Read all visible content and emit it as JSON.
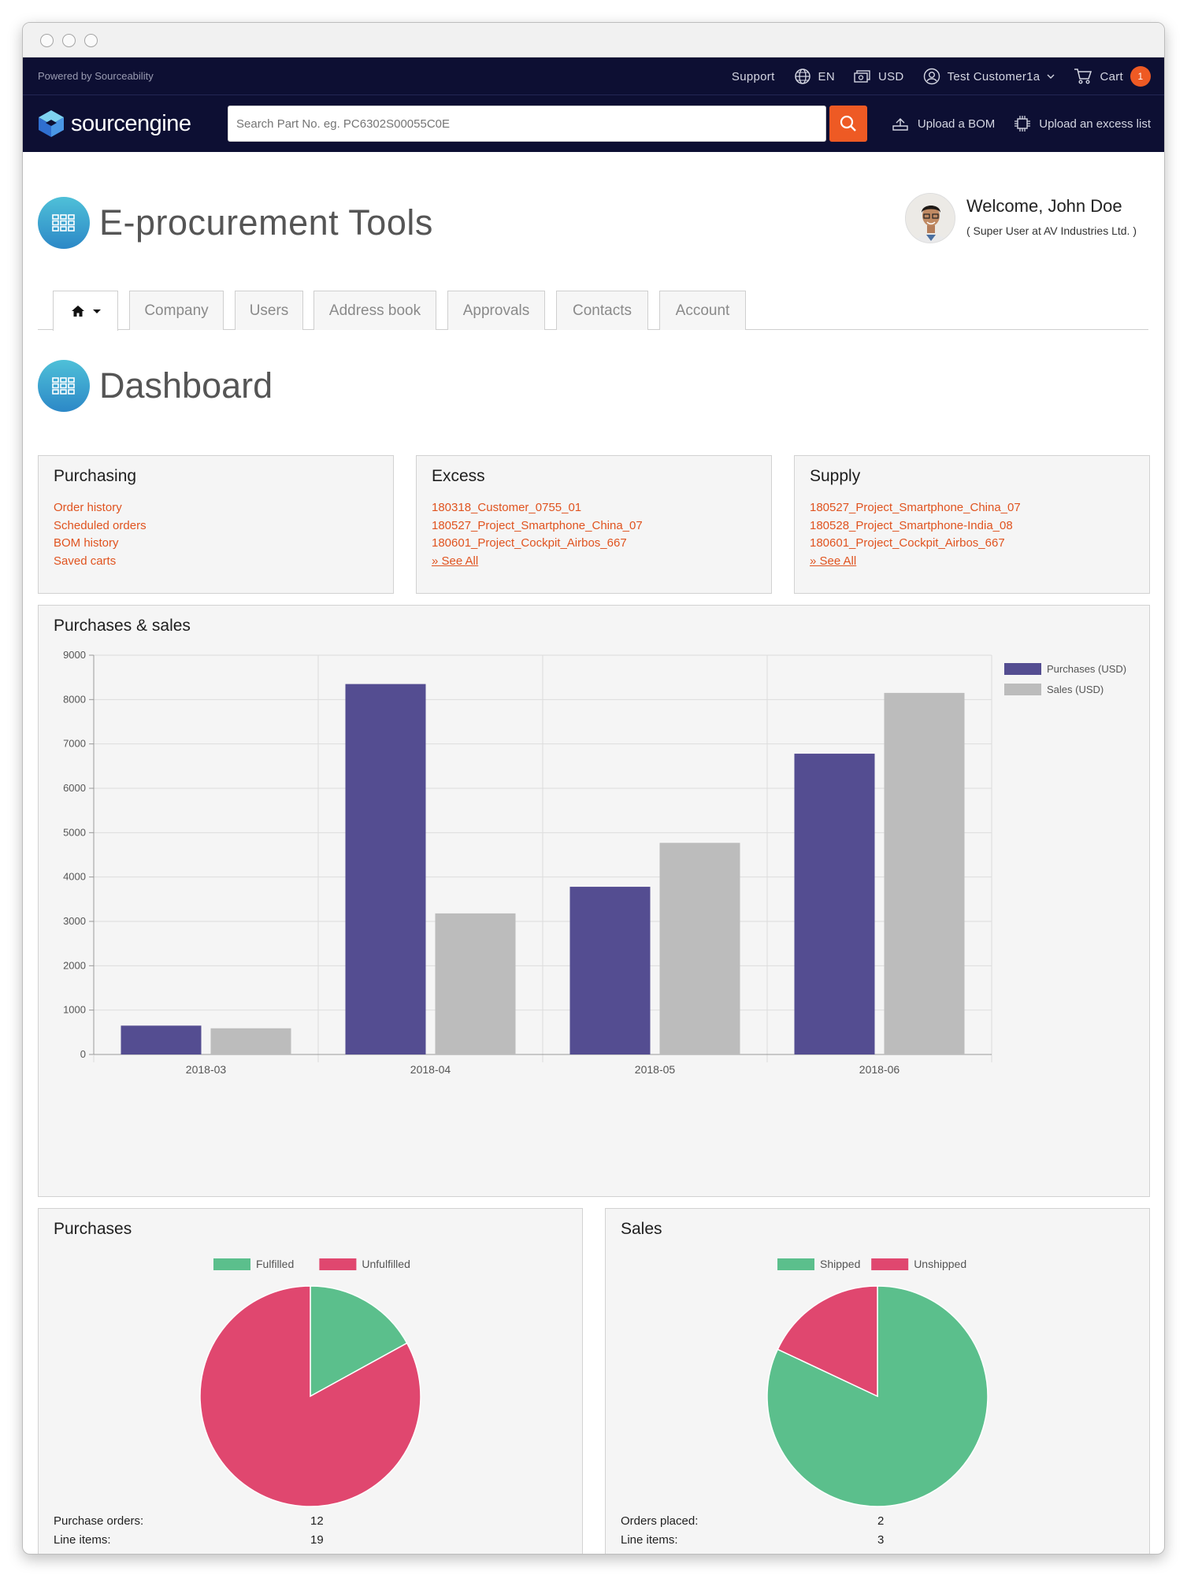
{
  "topbar": {
    "powered_by": "Powered by Sourceability",
    "support": "Support",
    "language": "EN",
    "currency": "USD",
    "user": "Test Customer1a",
    "cart_label": "Cart",
    "cart_count": "1"
  },
  "mainbar": {
    "logo_text": "sourcengine",
    "search_placeholder": "Search Part No. eg. PC6302S00055C0E",
    "upload_bom": "Upload a BOM",
    "upload_excess": "Upload an excess list"
  },
  "page": {
    "title": "E-procurement Tools",
    "welcome": "Welcome, John Doe",
    "role": "( Super User at AV Industries Ltd. )"
  },
  "tabs": [
    "Company",
    "Users",
    "Address book",
    "Approvals",
    "Contacts",
    "Account"
  ],
  "dashboard": {
    "title": "Dashboard",
    "purchasing": {
      "title": "Purchasing",
      "links": [
        "Order history",
        "Scheduled orders",
        "BOM history",
        "Saved carts"
      ]
    },
    "excess": {
      "title": "Excess",
      "links": [
        "180318_Customer_0755_01",
        "180527_Project_Smartphone_China_07",
        "180601_Project_Cockpit_Airbos_667"
      ],
      "see_all": "» See All"
    },
    "supply": {
      "title": "Supply",
      "links": [
        "180527_Project_Smartphone_China_07",
        "180528_Project_Smartphone-India_08",
        "180601_Project_Cockpit_Airbos_667"
      ],
      "see_all": "» See All"
    },
    "purchases_card": {
      "title": "Purchases",
      "orders_label": "Purchase orders:",
      "orders_value": "12",
      "items_label": "Line items:",
      "items_value": "19"
    },
    "sales_card": {
      "title": "Sales",
      "orders_label": "Orders placed:",
      "orders_value": "2",
      "items_label": "Line items:",
      "items_value": "3"
    }
  },
  "colors": {
    "accent": "#ee5a24",
    "navy": "#0d0f33",
    "purchases": "#544d91",
    "sales": "#bcbcbc",
    "green": "#5bbf8c",
    "red": "#e0476f"
  },
  "chart_data": [
    {
      "type": "bar",
      "title": "Purchases & sales",
      "categories": [
        "2018-03",
        "2018-04",
        "2018-05",
        "2018-06"
      ],
      "series": [
        {
          "name": "Purchases (USD)",
          "values": [
            650,
            8350,
            3780,
            6780
          ]
        },
        {
          "name": "Sales (USD)",
          "values": [
            590,
            3180,
            4770,
            8150
          ]
        }
      ],
      "ylim": [
        0,
        9000
      ],
      "yticks": [
        0,
        1000,
        2000,
        3000,
        4000,
        5000,
        6000,
        7000,
        8000,
        9000
      ],
      "legend": "top-right",
      "grid": true
    },
    {
      "type": "pie",
      "title": "Purchases",
      "labels": [
        "Fulfilled",
        "Unfulfilled"
      ],
      "values": [
        17,
        83
      ],
      "legend": "top"
    },
    {
      "type": "pie",
      "title": "Sales",
      "labels": [
        "Shipped",
        "Unshipped"
      ],
      "values": [
        82,
        18
      ],
      "legend": "top"
    }
  ]
}
